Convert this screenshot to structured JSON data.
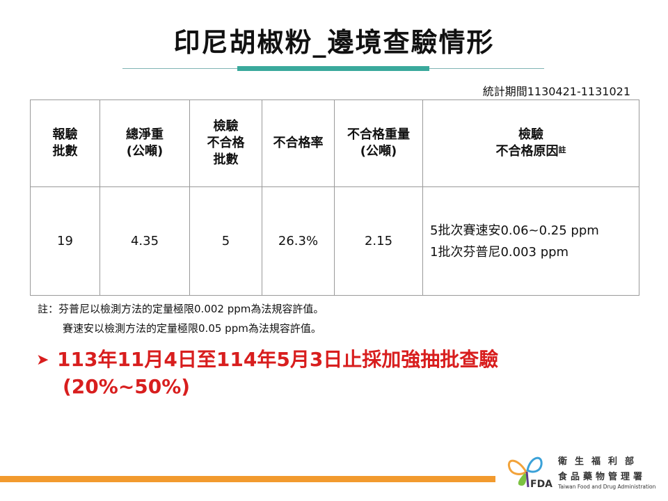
{
  "title": "印尼胡椒粉_邊境查驗情形",
  "period": "統計期間1130421-1131021",
  "table": {
    "headers": {
      "batches": [
        "報驗",
        "批數"
      ],
      "net_weight": [
        "總淨重",
        "(公噸)"
      ],
      "fail_batches": [
        "檢驗",
        "不合格",
        "批數"
      ],
      "fail_rate": [
        "不合格率"
      ],
      "fail_weight": [
        "不合格重量",
        "(公噸)"
      ],
      "reason": [
        "檢驗",
        "不合格原因"
      ],
      "reason_note": "註"
    },
    "row": {
      "batches": "19",
      "net_weight": "4.35",
      "fail_batches": "5",
      "fail_rate": "26.3%",
      "fail_weight": "2.15",
      "reasons": [
        "5批次賽速安0.06~0.25  ppm",
        "1批次芬普尼0.003  ppm"
      ]
    }
  },
  "notes": [
    "註：芬普尼以檢測方法的定量極限0.002 ppm為法規容許值。",
    "賽速安以檢測方法的定量極限0.05 ppm為法規容許值。"
  ],
  "highlight": {
    "lines": [
      "113年11月4日至114年5月3日止採加強抽批查驗",
      "(20%~50%)"
    ],
    "color": "#d81e1e"
  },
  "logo": {
    "line1": "衛生福利部",
    "line2": "食品藥物管理署",
    "line3": "Taiwan Food and Drug Administration",
    "mark": "FDA"
  },
  "colors": {
    "accent": "#3aa99c",
    "orange": "#f29a2e"
  }
}
